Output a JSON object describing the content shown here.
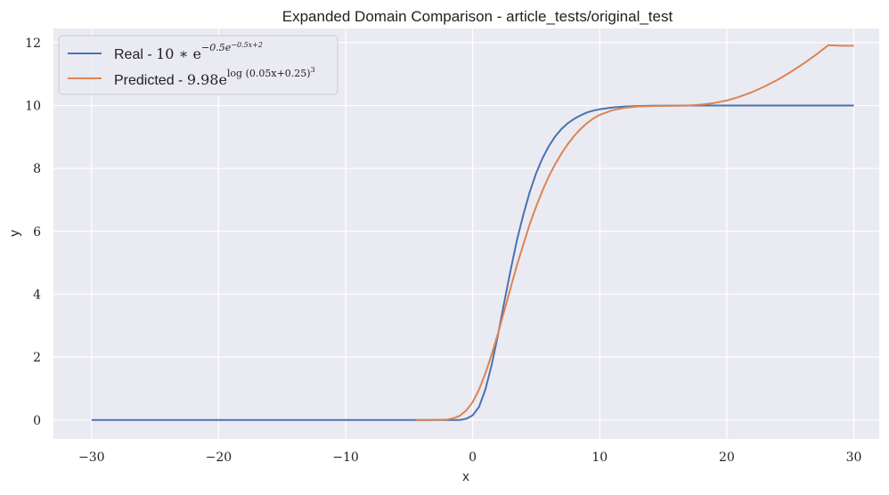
{
  "chart_data": {
    "type": "line",
    "title": "Expanded Domain Comparison - article_tests/original_test",
    "xlabel": "x",
    "ylabel": "y",
    "xlim": [
      -33,
      32
    ],
    "ylim": [
      -0.6,
      12.45
    ],
    "xticks": [
      -30,
      -20,
      -10,
      0,
      10,
      20,
      30
    ],
    "yticks": [
      0,
      2,
      4,
      6,
      8,
      10,
      12
    ],
    "xtick_labels": [
      "−30",
      "−20",
      "−10",
      "0",
      "10",
      "20",
      "30"
    ],
    "ytick_labels": [
      "0",
      "2",
      "4",
      "6",
      "8",
      "10",
      "12"
    ],
    "grid": true,
    "legend_location": "upper-left",
    "series": [
      {
        "name": "Real",
        "label_prefix": "Real - ",
        "formula_main": "10 ∗ e",
        "formula_sup": "−0.5e",
        "formula_supsup": "−0.5x+2",
        "color": "#4c72b0",
        "x": [
          -30,
          -10,
          -5,
          -3,
          -2,
          -1,
          -0.5,
          0,
          0.5,
          1,
          1.5,
          2,
          2.5,
          3,
          3.5,
          4,
          4.5,
          5,
          5.5,
          6,
          6.5,
          7,
          7.5,
          8,
          8.5,
          9,
          9.5,
          10,
          11,
          12,
          13,
          14,
          16,
          18,
          20,
          25,
          30
        ],
        "y": [
          0,
          0,
          0,
          0,
          0,
          0.002,
          0.04,
          0.15,
          0.42,
          0.97,
          1.76,
          2.73,
          3.78,
          4.79,
          5.74,
          6.55,
          7.26,
          7.85,
          8.33,
          8.71,
          9.02,
          9.26,
          9.44,
          9.58,
          9.69,
          9.78,
          9.84,
          9.88,
          9.94,
          9.97,
          9.985,
          9.993,
          9.998,
          10,
          10,
          10,
          10
        ]
      },
      {
        "name": "Predicted",
        "label_prefix": "Predicted - ",
        "formula_main": "9.98e",
        "formula_sup": "log (0.05x+0.25)",
        "formula_supsup": "3",
        "color": "#dd8452",
        "x": [
          -4.5,
          -4,
          -3,
          -2,
          -1.5,
          -1,
          -0.5,
          0,
          0.5,
          1,
          1.5,
          2,
          2.5,
          3,
          3.5,
          4,
          4.5,
          5,
          5.5,
          6,
          6.5,
          7,
          7.5,
          8,
          8.5,
          9,
          9.5,
          10,
          11,
          12,
          13,
          14,
          15,
          16,
          17,
          18,
          19,
          20,
          21,
          22,
          23,
          24,
          25,
          26,
          27,
          28,
          29,
          30
        ],
        "y": [
          0,
          0,
          0.002,
          0.018,
          0.06,
          0.14,
          0.31,
          0.57,
          0.97,
          1.48,
          2.09,
          2.77,
          3.49,
          4.22,
          4.94,
          5.6,
          6.24,
          6.79,
          7.3,
          7.75,
          8.14,
          8.48,
          8.78,
          9.04,
          9.26,
          9.44,
          9.59,
          9.7,
          9.85,
          9.93,
          9.97,
          9.985,
          9.99,
          9.995,
          10.0,
          10.03,
          10.08,
          10.16,
          10.28,
          10.43,
          10.61,
          10.82,
          11.06,
          11.32,
          11.61,
          11.92,
          11.9,
          11.9
        ]
      }
    ]
  }
}
